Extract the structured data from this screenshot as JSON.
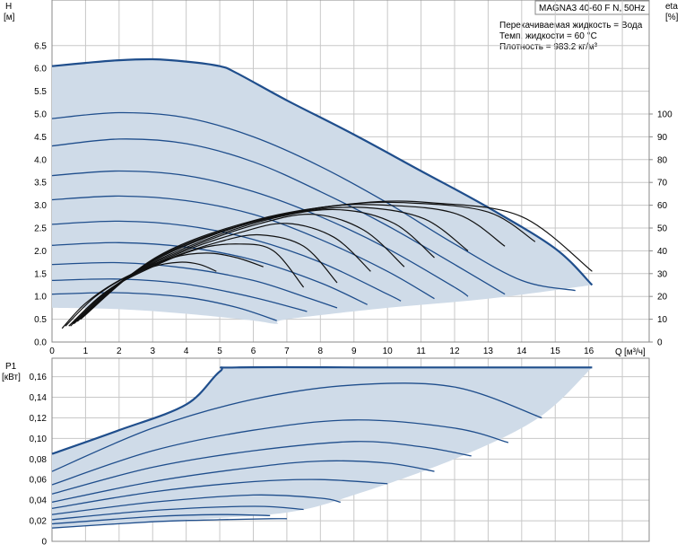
{
  "header": {
    "model": "MAGNA3 40-60 F N, 50Hz",
    "liquid": "Перекачиваемая жидкость = Вода",
    "temp": "Темп. жидкости = 60 °C",
    "density": "Плотность = 983.2 кг/м³"
  },
  "colors": {
    "envelope_fill": "#cfdbe8",
    "curve": "#1f4e8c",
    "eta": "#111111",
    "grid": "#c8c8c8"
  },
  "chart_data": [
    {
      "type": "line",
      "name": "head",
      "ylabel": "H",
      "yunit": "[м]",
      "xlabel": "Q",
      "xunit": "[м³/ч]",
      "y2label": "eta",
      "y2unit": "[%]",
      "xlim": [
        0,
        17.8
      ],
      "ylim": [
        0,
        7.5
      ],
      "y2lim": [
        0,
        150
      ],
      "xticks": [
        "0",
        "1",
        "2",
        "3",
        "4",
        "5",
        "6",
        "7",
        "8",
        "9",
        "10",
        "11",
        "12",
        "13",
        "14",
        "15",
        "16"
      ],
      "yticks": [
        "0.0",
        "0.5",
        "1.0",
        "1.5",
        "2.0",
        "2.5",
        "3.0",
        "3.5",
        "4.0",
        "4.5",
        "5.0",
        "5.5",
        "6.0",
        "6.5"
      ],
      "y2ticks": [
        "0",
        "10",
        "20",
        "30",
        "40",
        "50",
        "60",
        "70",
        "80",
        "90",
        "100"
      ],
      "grid": true,
      "envelope": {
        "max": [
          [
            0,
            6.05
          ],
          [
            1,
            6.12
          ],
          [
            2,
            6.18
          ],
          [
            3,
            6.2
          ],
          [
            4,
            6.15
          ],
          [
            5,
            6.05
          ],
          [
            5.5,
            5.9
          ],
          [
            7,
            5.3
          ],
          [
            9,
            4.55
          ],
          [
            11,
            3.75
          ],
          [
            13,
            2.95
          ],
          [
            15,
            2.05
          ],
          [
            16.1,
            1.25
          ]
        ],
        "min": [
          [
            16.1,
            1.25
          ],
          [
            13,
            0.95
          ],
          [
            10,
            0.75
          ],
          [
            7,
            0.5
          ],
          [
            6.7,
            0.4
          ],
          [
            6,
            0.47
          ],
          [
            4,
            0.62
          ],
          [
            2,
            0.72
          ],
          [
            0,
            0.75
          ]
        ]
      },
      "series": [
        {
          "points": [
            [
              0,
              4.9
            ],
            [
              2,
              5.03
            ],
            [
              4,
              4.92
            ],
            [
              6,
              4.5
            ],
            [
              8,
              3.85
            ],
            [
              10,
              3.05
            ],
            [
              12,
              2.15
            ],
            [
              14,
              1.35
            ],
            [
              15.6,
              1.13
            ]
          ]
        },
        {
          "points": [
            [
              0,
              4.3
            ],
            [
              2,
              4.45
            ],
            [
              4,
              4.35
            ],
            [
              6,
              3.95
            ],
            [
              8,
              3.3
            ],
            [
              10,
              2.55
            ],
            [
              12,
              1.7
            ],
            [
              13.5,
              1.05
            ]
          ]
        },
        {
          "points": [
            [
              0,
              3.65
            ],
            [
              2,
              3.75
            ],
            [
              4,
              3.65
            ],
            [
              6,
              3.3
            ],
            [
              8,
              2.75
            ],
            [
              10,
              2.05
            ],
            [
              12,
              1.2
            ],
            [
              12.4,
              1.0
            ]
          ]
        },
        {
          "points": [
            [
              0,
              3.12
            ],
            [
              2,
              3.2
            ],
            [
              4,
              3.1
            ],
            [
              6,
              2.8
            ],
            [
              8,
              2.25
            ],
            [
              10,
              1.55
            ],
            [
              11.4,
              0.95
            ]
          ]
        },
        {
          "points": [
            [
              0,
              2.58
            ],
            [
              2,
              2.65
            ],
            [
              4,
              2.55
            ],
            [
              6,
              2.25
            ],
            [
              8,
              1.75
            ],
            [
              10,
              1.05
            ],
            [
              10.4,
              0.9
            ]
          ]
        },
        {
          "points": [
            [
              0,
              2.12
            ],
            [
              2,
              2.18
            ],
            [
              4,
              2.08
            ],
            [
              6,
              1.8
            ],
            [
              8,
              1.3
            ],
            [
              9.4,
              0.82
            ]
          ]
        },
        {
          "points": [
            [
              0,
              1.7
            ],
            [
              2,
              1.74
            ],
            [
              4,
              1.62
            ],
            [
              6,
              1.35
            ],
            [
              7.5,
              1.0
            ],
            [
              8.5,
              0.75
            ]
          ]
        },
        {
          "points": [
            [
              0,
              1.35
            ],
            [
              2,
              1.38
            ],
            [
              4,
              1.27
            ],
            [
              6,
              0.98
            ],
            [
              7.6,
              0.67
            ]
          ]
        },
        {
          "points": [
            [
              0,
              1.05
            ],
            [
              2,
              1.08
            ],
            [
              4,
              0.98
            ],
            [
              5.5,
              0.76
            ],
            [
              6.7,
              0.47
            ]
          ]
        }
      ],
      "eta_series": [
        {
          "points": [
            [
              0.3,
              6
            ],
            [
              1,
              17
            ],
            [
              2,
              27
            ],
            [
              3,
              33
            ],
            [
              3.8,
              35
            ],
            [
              4.4,
              34
            ],
            [
              4.9,
              31
            ]
          ]
        },
        {
          "points": [
            [
              0.4,
              7
            ],
            [
              1.3,
              20
            ],
            [
              2.4,
              30
            ],
            [
              3.6,
              37
            ],
            [
              4.6,
              39
            ],
            [
              5.5,
              37
            ],
            [
              6.3,
              33
            ]
          ]
        },
        {
          "points": [
            [
              0.5,
              7
            ],
            [
              1.6,
              22
            ],
            [
              3,
              33
            ],
            [
              4.4,
              41
            ],
            [
              5.6,
              43
            ],
            [
              6.6,
              40
            ],
            [
              7.5,
              24
            ]
          ]
        },
        {
          "points": [
            [
              0.55,
              7
            ],
            [
              1.8,
              24
            ],
            [
              3.4,
              36
            ],
            [
              5,
              44
            ],
            [
              6.2,
              47
            ],
            [
              7.5,
              42
            ],
            [
              8.5,
              26
            ]
          ]
        },
        {
          "points": [
            [
              0.6,
              8
            ],
            [
              2,
              26
            ],
            [
              3.8,
              39
            ],
            [
              5.6,
              48
            ],
            [
              7,
              52
            ],
            [
              8.4,
              46
            ],
            [
              9.5,
              31
            ]
          ]
        },
        {
          "points": [
            [
              0.65,
              8
            ],
            [
              2.2,
              28
            ],
            [
              4.2,
              42
            ],
            [
              6.2,
              52
            ],
            [
              7.8,
              56
            ],
            [
              9.3,
              49
            ],
            [
              10.5,
              33
            ]
          ]
        },
        {
          "points": [
            [
              0.7,
              9
            ],
            [
              2.4,
              30
            ],
            [
              4.6,
              45
            ],
            [
              6.8,
              55
            ],
            [
              8.6,
              58
            ],
            [
              10.2,
              52
            ],
            [
              11.4,
              37
            ]
          ]
        },
        {
          "points": [
            [
              0.75,
              9
            ],
            [
              2.6,
              32
            ],
            [
              5,
              48
            ],
            [
              7.4,
              57
            ],
            [
              9.3,
              59
            ],
            [
              11.1,
              54
            ],
            [
              12.4,
              40
            ]
          ]
        },
        {
          "points": [
            [
              0.8,
              10
            ],
            [
              2.8,
              34
            ],
            [
              5.4,
              50
            ],
            [
              8,
              59
            ],
            [
              10,
              60
            ],
            [
              12.1,
              56
            ],
            [
              13.5,
              42
            ]
          ]
        },
        {
          "points": [
            [
              0.85,
              10
            ],
            [
              3,
              36
            ],
            [
              5.8,
              52
            ],
            [
              8.6,
              60
            ],
            [
              10.7,
              61
            ],
            [
              13,
              57
            ],
            [
              14.4,
              44
            ]
          ]
        },
        {
          "points": [
            [
              0.9,
              11
            ],
            [
              3.2,
              38
            ],
            [
              6.2,
              54
            ],
            [
              9.2,
              61
            ],
            [
              11.4,
              61
            ],
            [
              14,
              55
            ],
            [
              16.1,
              31
            ]
          ]
        }
      ]
    },
    {
      "type": "line",
      "name": "power",
      "ylabel": "P1",
      "yunit": "[кВт]",
      "xlim": [
        0,
        17.8
      ],
      "ylim": [
        0,
        0.178
      ],
      "yticks": [
        "0",
        "0,02",
        "0,04",
        "0,06",
        "0,08",
        "0,10",
        "0,12",
        "0,14",
        "0,16"
      ],
      "grid": true,
      "envelope": {
        "max": [
          [
            0,
            0.085
          ],
          [
            2,
            0.108
          ],
          [
            4,
            0.133
          ],
          [
            5,
            0.165
          ],
          [
            5.5,
            0.169
          ],
          [
            10,
            0.169
          ],
          [
            16.1,
            0.169
          ]
        ],
        "min": [
          [
            16.1,
            0.169
          ],
          [
            14.5,
            0.12
          ],
          [
            12,
            0.08
          ],
          [
            9,
            0.045
          ],
          [
            7,
            0.028
          ],
          [
            4,
            0.021
          ],
          [
            2,
            0.017
          ],
          [
            0,
            0.012
          ]
        ]
      },
      "series": [
        {
          "points": [
            [
              0,
              0.068
            ],
            [
              3,
              0.11
            ],
            [
              6,
              0.138
            ],
            [
              9,
              0.152
            ],
            [
              12,
              0.15
            ],
            [
              14.6,
              0.12
            ]
          ]
        },
        {
          "points": [
            [
              0,
              0.055
            ],
            [
              3,
              0.088
            ],
            [
              6,
              0.108
            ],
            [
              9,
              0.118
            ],
            [
              12,
              0.11
            ],
            [
              13.6,
              0.096
            ]
          ]
        },
        {
          "points": [
            [
              0,
              0.046
            ],
            [
              3,
              0.072
            ],
            [
              6,
              0.088
            ],
            [
              9,
              0.097
            ],
            [
              11,
              0.092
            ],
            [
              12.5,
              0.083
            ]
          ]
        },
        {
          "points": [
            [
              0,
              0.038
            ],
            [
              3,
              0.058
            ],
            [
              6,
              0.072
            ],
            [
              8,
              0.078
            ],
            [
              10,
              0.076
            ],
            [
              11.4,
              0.068
            ]
          ]
        },
        {
          "points": [
            [
              0,
              0.032
            ],
            [
              3,
              0.048
            ],
            [
              6,
              0.058
            ],
            [
              8,
              0.06
            ],
            [
              10,
              0.056
            ]
          ]
        },
        {
          "points": [
            [
              0,
              0.026
            ],
            [
              3,
              0.038
            ],
            [
              6,
              0.045
            ],
            [
              8,
              0.042
            ],
            [
              8.6,
              0.038
            ]
          ]
        },
        {
          "points": [
            [
              0,
              0.021
            ],
            [
              3,
              0.03
            ],
            [
              6,
              0.034
            ],
            [
              7.5,
              0.031
            ]
          ]
        },
        {
          "points": [
            [
              0,
              0.017
            ],
            [
              3,
              0.024
            ],
            [
              5,
              0.026
            ],
            [
              6.5,
              0.025
            ]
          ]
        },
        {
          "points": [
            [
              0,
              0.013
            ],
            [
              3,
              0.019
            ],
            [
              5,
              0.021
            ],
            [
              6.5,
              0.022
            ],
            [
              7,
              0.022
            ]
          ]
        }
      ]
    }
  ]
}
